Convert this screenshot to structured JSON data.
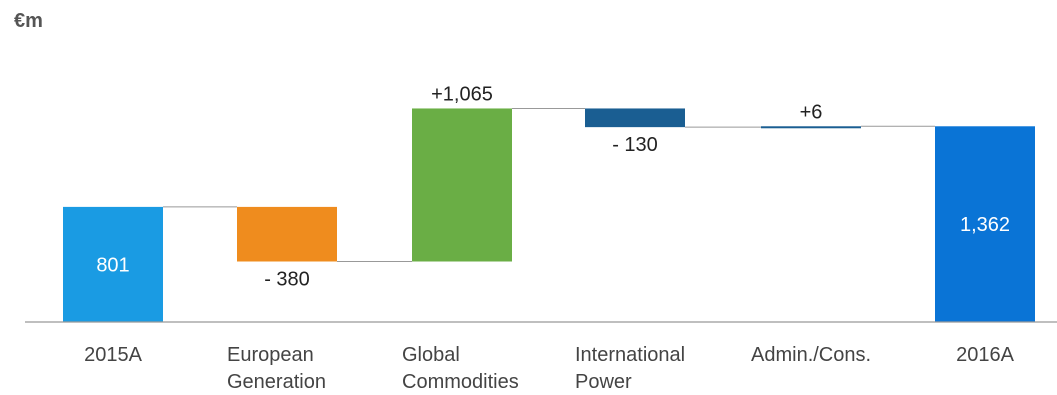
{
  "unit_label": "€m",
  "colors": {
    "2015A": "#1a9be3",
    "European Generation": "#ef8c1e",
    "Global Commodities": "#6aae45",
    "International Power": "#1a5e92",
    "Admin./Cons.": "#1a5e92",
    "2016A": "#0a74d6",
    "axis": "#999999",
    "connector": "#999999",
    "label_dark": "#222222",
    "category_text": "#444444",
    "label_light": "#ffffff"
  },
  "chart_data": {
    "type": "bar",
    "subtype": "waterfall",
    "unit": "€m",
    "categories": [
      [
        "2015A"
      ],
      [
        "European",
        "Generation"
      ],
      [
        "Global",
        "Commodities"
      ],
      [
        "International",
        "Power"
      ],
      [
        "Admin./Cons."
      ],
      [
        "2016A"
      ]
    ],
    "steps": [
      {
        "kind": "total",
        "start": 0,
        "end": 801,
        "label": "801"
      },
      {
        "kind": "delta",
        "start": 801,
        "end": 421,
        "label": "- 380"
      },
      {
        "kind": "delta",
        "start": 421,
        "end": 1486,
        "label": "+1,065"
      },
      {
        "kind": "delta",
        "start": 1486,
        "end": 1356,
        "label": "- 130"
      },
      {
        "kind": "delta",
        "start": 1356,
        "end": 1362,
        "label": "+6"
      },
      {
        "kind": "total",
        "start": 0,
        "end": 1362,
        "label": "1,362"
      }
    ],
    "ylim": [
      0,
      1600
    ],
    "grid": false,
    "legend": "none"
  }
}
